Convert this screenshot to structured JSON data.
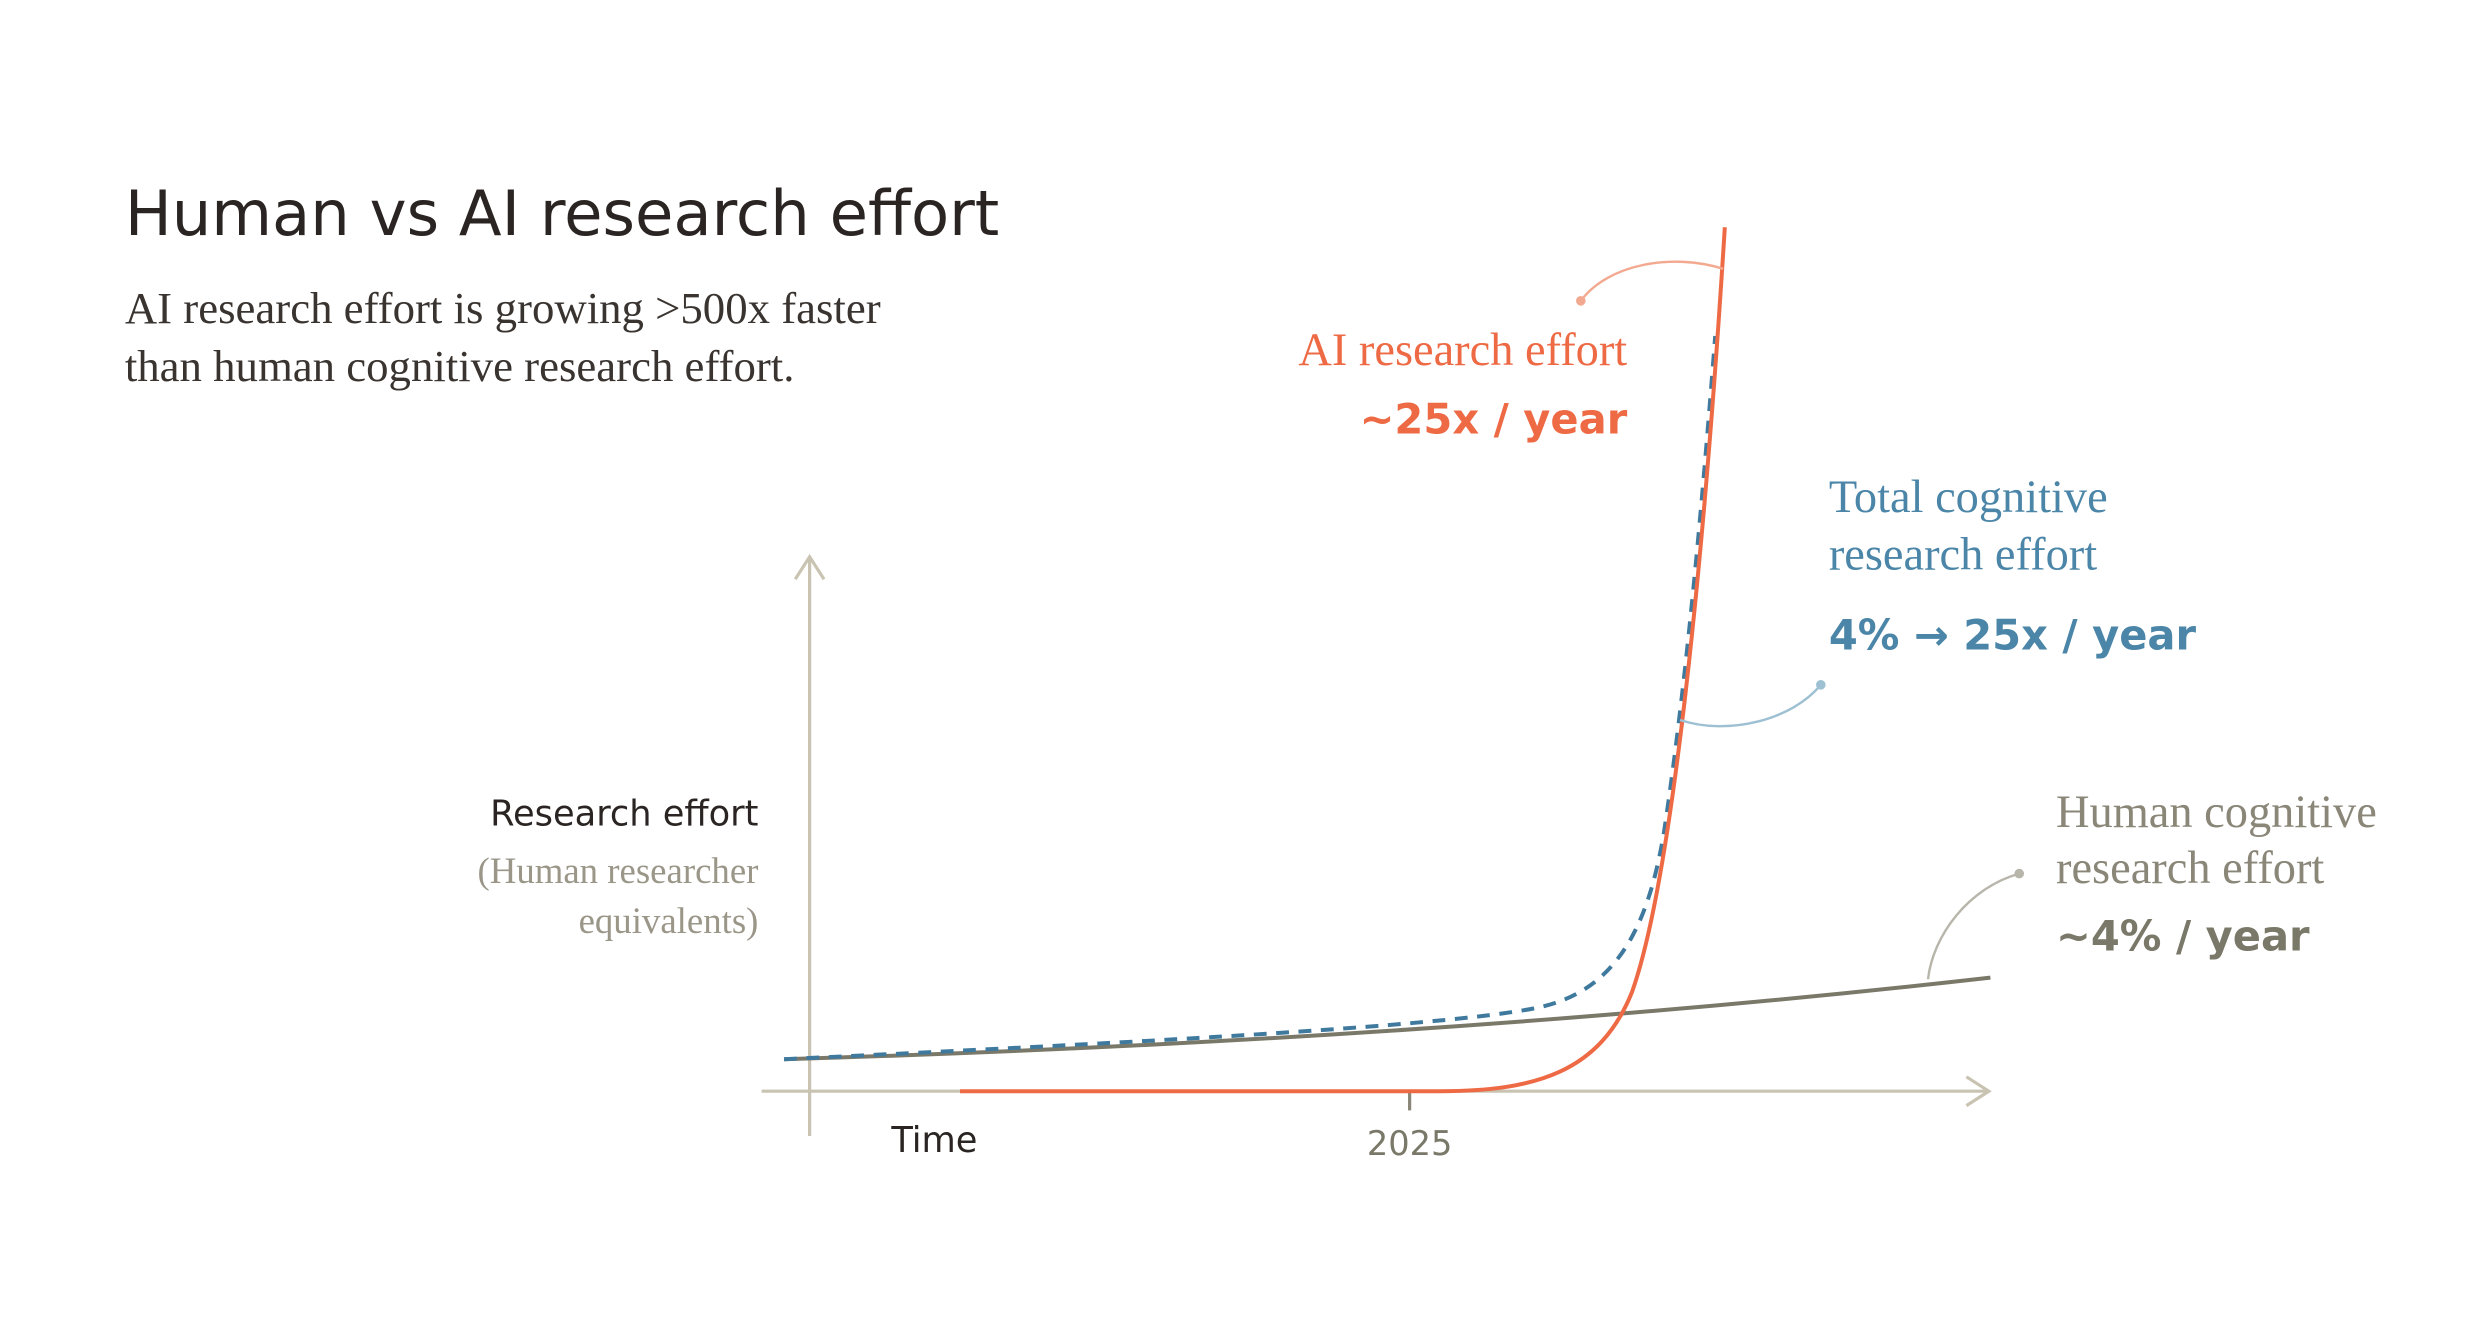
{
  "title": "Human vs AI research effort",
  "subtitle": [
    "AI research effort is growing >500x faster",
    "than human cognitive research effort."
  ],
  "y_axis": {
    "label": "Research effort",
    "sublabel": [
      "(Human researcher",
      "equivalents)"
    ]
  },
  "x_axis": {
    "label": "Time",
    "tick": "2025"
  },
  "annotations": [
    {
      "name": [
        "AI research effort"
      ],
      "rate": "~25x / year"
    },
    {
      "name": [
        "Total cognitive",
        "research effort"
      ],
      "rate": "4% → 25x / year"
    },
    {
      "name": [
        "Human cognitive",
        "research effort"
      ],
      "rate": "~4% / year"
    }
  ]
}
